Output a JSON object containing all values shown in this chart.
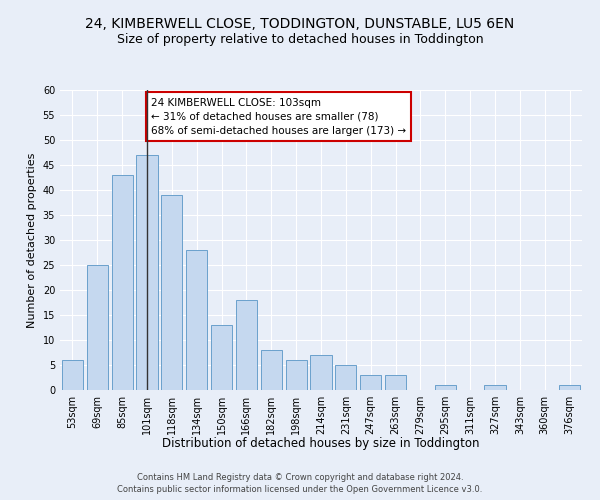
{
  "title": "24, KIMBERWELL CLOSE, TODDINGTON, DUNSTABLE, LU5 6EN",
  "subtitle": "Size of property relative to detached houses in Toddington",
  "xlabel": "Distribution of detached houses by size in Toddington",
  "ylabel": "Number of detached properties",
  "categories": [
    "53sqm",
    "69sqm",
    "85sqm",
    "101sqm",
    "118sqm",
    "134sqm",
    "150sqm",
    "166sqm",
    "182sqm",
    "198sqm",
    "214sqm",
    "231sqm",
    "247sqm",
    "263sqm",
    "279sqm",
    "295sqm",
    "311sqm",
    "327sqm",
    "343sqm",
    "360sqm",
    "376sqm"
  ],
  "values": [
    6,
    25,
    43,
    47,
    39,
    28,
    13,
    18,
    8,
    6,
    7,
    5,
    3,
    3,
    0,
    1,
    0,
    1,
    0,
    0,
    1
  ],
  "bar_color": "#c5d8ef",
  "bar_edge_color": "#6aa0cc",
  "highlight_index": 3,
  "highlight_line_color": "#333333",
  "ylim": [
    0,
    60
  ],
  "yticks": [
    0,
    5,
    10,
    15,
    20,
    25,
    30,
    35,
    40,
    45,
    50,
    55,
    60
  ],
  "annotation_text": "24 KIMBERWELL CLOSE: 103sqm\n← 31% of detached houses are smaller (78)\n68% of semi-detached houses are larger (173) →",
  "annotation_box_facecolor": "#ffffff",
  "annotation_box_edgecolor": "#cc0000",
  "footer_line1": "Contains HM Land Registry data © Crown copyright and database right 2024.",
  "footer_line2": "Contains public sector information licensed under the Open Government Licence v3.0.",
  "bg_color": "#e8eef8",
  "plot_bg_color": "#e8eef8",
  "grid_color": "#ffffff",
  "title_fontsize": 10,
  "subtitle_fontsize": 9,
  "ylabel_fontsize": 8,
  "xlabel_fontsize": 8.5,
  "tick_fontsize": 7,
  "annotation_fontsize": 7.5,
  "footer_fontsize": 6
}
